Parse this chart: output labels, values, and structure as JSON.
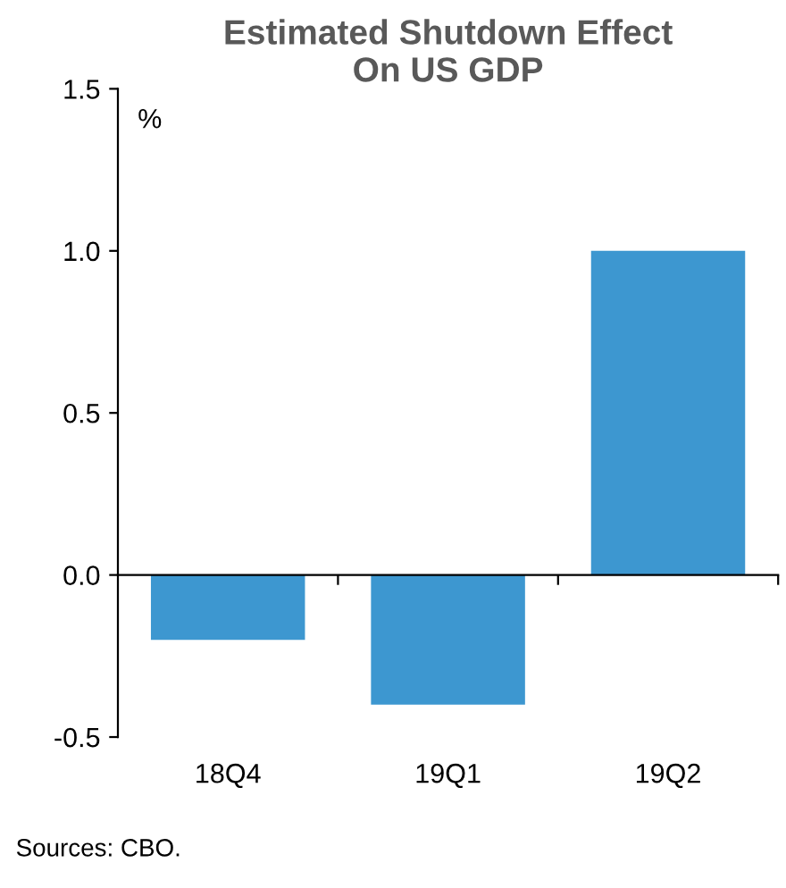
{
  "chart_data": {
    "type": "bar",
    "title": "Estimated Shutdown Effect\nOn US GDP",
    "ylabel": "%",
    "categories": [
      "18Q4",
      "19Q1",
      "19Q2"
    ],
    "values": [
      -0.2,
      -0.4,
      1.0
    ],
    "color": "#3d97d0",
    "ylim": [
      -0.5,
      1.5
    ],
    "yticks": [
      {
        "value": -0.5,
        "label": "-0.5"
      },
      {
        "value": 0,
        "label": "0.0"
      },
      {
        "value": 0.5,
        "label": "0.5"
      },
      {
        "value": 1,
        "label": "1.0"
      },
      {
        "value": 1.5,
        "label": "1.5"
      }
    ],
    "legend": false,
    "annotations": [
      "Sources: CBO."
    ]
  }
}
